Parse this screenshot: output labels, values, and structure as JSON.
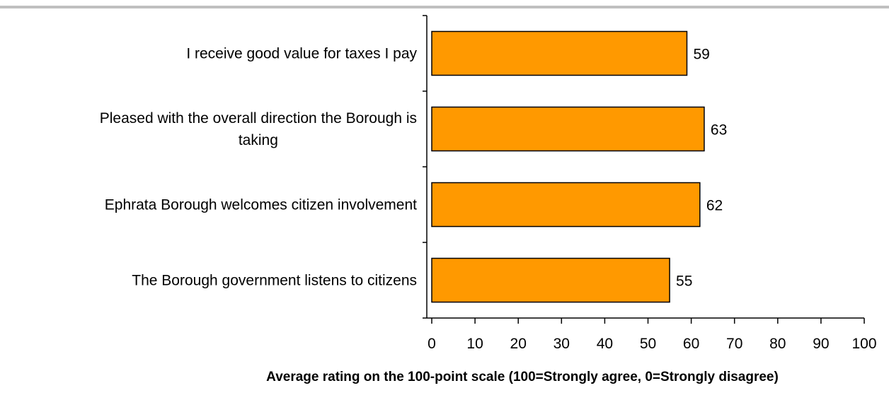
{
  "chart_data": {
    "type": "bar",
    "orientation": "horizontal",
    "categories": [
      "I receive good value for taxes I pay",
      "Pleased with the overall direction the Borough is taking",
      "Ephrata Borough welcomes citizen involvement",
      "The Borough government listens to citizens"
    ],
    "category_lines": [
      [
        "I receive good value for taxes I pay"
      ],
      [
        "Pleased with the overall direction the Borough is",
        "taking"
      ],
      [
        "Ephrata Borough welcomes citizen involvement"
      ],
      [
        "The Borough government listens to citizens"
      ]
    ],
    "values": [
      59,
      63,
      62,
      55
    ],
    "data_labels": [
      "59",
      "63",
      "62",
      "55"
    ],
    "xlim": [
      0,
      100
    ],
    "xticks": [
      0,
      10,
      20,
      30,
      40,
      50,
      60,
      70,
      80,
      90,
      100
    ],
    "xtick_labels": [
      "0",
      "10",
      "20",
      "30",
      "40",
      "50",
      "60",
      "70",
      "80",
      "90",
      "100"
    ],
    "xlabel": "Average rating on the 100-point scale (100=Strongly agree, 0=Strongly disagree)",
    "ylabel": "",
    "title": "",
    "grid": false,
    "legend": "none",
    "bar_color": "#FF9900",
    "bar_edge_color": "#000000",
    "top_rule_color": "#C0C0C0"
  }
}
